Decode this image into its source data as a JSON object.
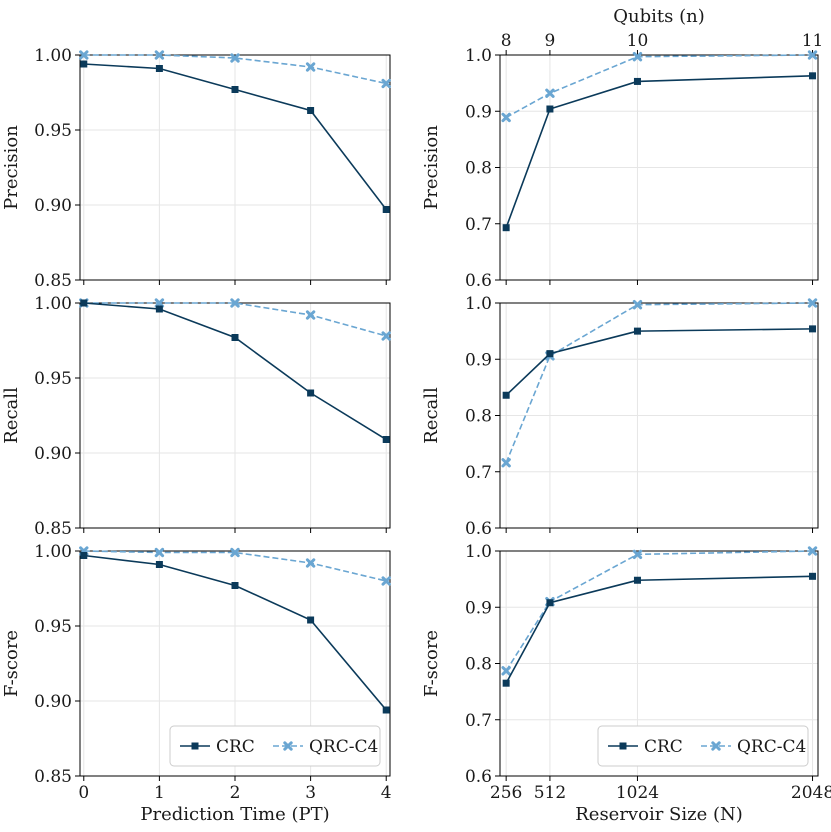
{
  "colors": {
    "CRC": "#0b3a5a",
    "QRC-C4": "#6aa6d2",
    "grid": "#e6e6e6",
    "axis": "#000000"
  },
  "legend": {
    "placement": "lower-right",
    "items": [
      {
        "label": "CRC",
        "color": "#0b3a5a",
        "marker": "square",
        "linestyle": "solid"
      },
      {
        "label": "QRC-C4",
        "color": "#6aa6d2",
        "marker": "x",
        "linestyle": "dashed"
      }
    ]
  },
  "chart_data": [
    {
      "type": "line",
      "ylabel": "Precision",
      "xlabel": "",
      "x": [
        0,
        1,
        2,
        3,
        4
      ],
      "xticks": [],
      "xlim": [
        -0.05,
        4.05
      ],
      "ylim": [
        0.85,
        1.0
      ],
      "yticks": [
        "0.85",
        "0.90",
        "0.95",
        "1.00"
      ],
      "grid": true,
      "series": [
        {
          "name": "CRC",
          "values": [
            0.994,
            0.991,
            0.977,
            0.963,
            0.897
          ]
        },
        {
          "name": "QRC-C4",
          "values": [
            1.0,
            1.0,
            0.998,
            0.992,
            0.981
          ]
        }
      ]
    },
    {
      "type": "line",
      "ylabel": "Precision",
      "xlabel": "",
      "x": [
        256,
        512,
        1024,
        2048
      ],
      "xticks": [],
      "xlim": [
        220,
        2080
      ],
      "ylim": [
        0.6,
        1.0
      ],
      "yticks": [
        "0.6",
        "0.7",
        "0.8",
        "0.9",
        "1.0"
      ],
      "top_axis_label": "Qubits (n)",
      "top_ticks": [
        "8",
        "9",
        "10",
        "11"
      ],
      "grid": true,
      "series": [
        {
          "name": "CRC",
          "values": [
            0.693,
            0.904,
            0.953,
            0.963
          ]
        },
        {
          "name": "QRC-C4",
          "values": [
            0.889,
            0.932,
            0.997,
            1.0
          ]
        }
      ]
    },
    {
      "type": "line",
      "ylabel": "Recall",
      "xlabel": "",
      "x": [
        0,
        1,
        2,
        3,
        4
      ],
      "xticks": [],
      "xlim": [
        -0.05,
        4.05
      ],
      "ylim": [
        0.85,
        1.0
      ],
      "yticks": [
        "0.85",
        "0.90",
        "0.95",
        "1.00"
      ],
      "grid": true,
      "series": [
        {
          "name": "CRC",
          "values": [
            1.0,
            0.996,
            0.977,
            0.94,
            0.909
          ]
        },
        {
          "name": "QRC-C4",
          "values": [
            1.0,
            1.0,
            1.0,
            0.992,
            0.978
          ]
        }
      ]
    },
    {
      "type": "line",
      "ylabel": "Recall",
      "xlabel": "",
      "x": [
        256,
        512,
        1024,
        2048
      ],
      "xticks": [],
      "xlim": [
        220,
        2080
      ],
      "ylim": [
        0.6,
        1.0
      ],
      "yticks": [
        "0.6",
        "0.7",
        "0.8",
        "0.9",
        "1.0"
      ],
      "grid": true,
      "series": [
        {
          "name": "CRC",
          "values": [
            0.836,
            0.91,
            0.95,
            0.954
          ]
        },
        {
          "name": "QRC-C4",
          "values": [
            0.716,
            0.906,
            0.997,
            1.0
          ]
        }
      ]
    },
    {
      "type": "line",
      "ylabel": "F-score",
      "xlabel": "Prediction Time (PT)",
      "x": [
        0,
        1,
        2,
        3,
        4
      ],
      "xticks": [
        "0",
        "1",
        "2",
        "3",
        "4"
      ],
      "xlim": [
        -0.05,
        4.05
      ],
      "ylim": [
        0.85,
        1.0
      ],
      "yticks": [
        "0.85",
        "0.90",
        "0.95",
        "1.00"
      ],
      "grid": true,
      "legend": true,
      "series": [
        {
          "name": "CRC",
          "values": [
            0.997,
            0.991,
            0.977,
            0.954,
            0.894
          ]
        },
        {
          "name": "QRC-C4",
          "values": [
            1.0,
            0.999,
            0.999,
            0.992,
            0.98
          ]
        }
      ]
    },
    {
      "type": "line",
      "ylabel": "F-score",
      "xlabel": "Reservoir Size (N)",
      "x": [
        256,
        512,
        1024,
        2048
      ],
      "xticks": [
        "256",
        "512",
        "1024",
        "2048"
      ],
      "xlim": [
        220,
        2080
      ],
      "ylim": [
        0.6,
        1.0
      ],
      "yticks": [
        "0.6",
        "0.7",
        "0.8",
        "0.9",
        "1.0"
      ],
      "grid": true,
      "legend": true,
      "series": [
        {
          "name": "CRC",
          "values": [
            0.765,
            0.908,
            0.948,
            0.955
          ]
        },
        {
          "name": "QRC-C4",
          "values": [
            0.787,
            0.91,
            0.994,
            1.0
          ]
        }
      ]
    }
  ]
}
